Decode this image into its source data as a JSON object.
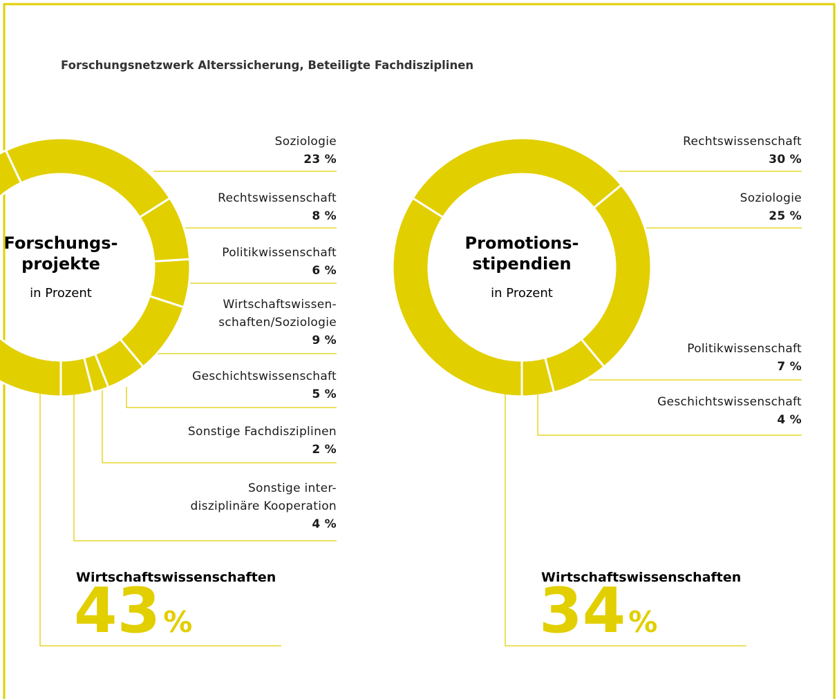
{
  "title": "Forschungsnetzwerk Alterssicherung, Beteiligte Fachdisziplinen",
  "unit": "%",
  "chart_data": [
    {
      "type": "pie",
      "title": [
        "Forschungs-",
        "projekte"
      ],
      "subtitle": "in Prozent",
      "color": "#e2cf00",
      "categories": [
        "Soziologie",
        "Rechtswissenschaft",
        "Politikwissenschaft",
        "Wirtschaftswissen-\nschaften/Soziologie",
        "Geschichtswissenschaft",
        "Sonstige Fachdisziplinen",
        "Sonstige inter-\ndisziplinäre Kooperation",
        "Wirtschaftswissenschaften"
      ],
      "values": [
        23,
        8,
        6,
        9,
        5,
        2,
        4,
        43
      ],
      "value_labels": [
        "23 %",
        "8 %",
        "6 %",
        "9 %",
        "5 %",
        "2 %",
        "4 %",
        null
      ]
    },
    {
      "type": "pie",
      "title": [
        "Promotions-",
        "stipendien"
      ],
      "subtitle": "in Prozent",
      "color": "#e2cf00",
      "categories": [
        "Rechtswissenschaft",
        "Soziologie",
        "Politikwissenschaft",
        "Geschichtswissenschaft",
        "Wirtschaftswissenschaften"
      ],
      "values": [
        30,
        25,
        7,
        4,
        34
      ],
      "value_labels": [
        "30 %",
        "25 %",
        "7 %",
        "4 %",
        null
      ]
    }
  ]
}
